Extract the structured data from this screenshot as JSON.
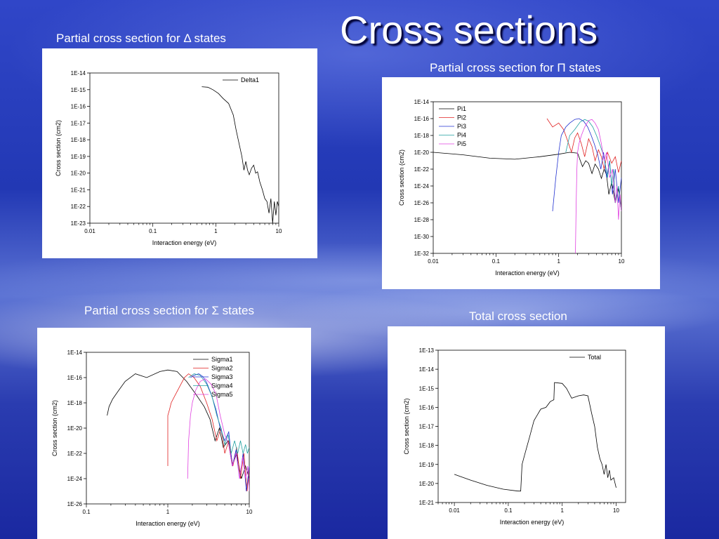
{
  "title": "Cross sections",
  "captions": {
    "delta": "Partial cross section for Δ states",
    "pi": "Partial cross section for Π states",
    "sigma": "Partial cross section for Σ states",
    "total": "Total cross section"
  },
  "chart_data": [
    {
      "id": "delta",
      "type": "line",
      "xlabel": "Interaction energy (eV)",
      "ylabel": "Cross section (cm2)",
      "xscale": "log",
      "yscale": "log",
      "xlim": [
        0.01,
        10
      ],
      "ylim": [
        1e-23,
        1e-14
      ],
      "xticks": [
        0.01,
        0.1,
        1,
        10
      ],
      "xticklabels": [
        "0.01",
        "0.1",
        "1",
        "10"
      ],
      "yticks": [
        1e-23,
        1e-22,
        1e-21,
        1e-20,
        1e-19,
        1e-18,
        1e-17,
        1e-16,
        1e-15,
        1e-14
      ],
      "yticklabels": [
        "1E-23",
        "1E-22",
        "1E-21",
        "1E-20",
        "1E-19",
        "1E-18",
        "1E-17",
        "1E-16",
        "1E-15",
        "1E-14"
      ],
      "legend_position": "top-right",
      "series": [
        {
          "name": "Delta1",
          "color": "#000000",
          "x": [
            0.6,
            0.75,
            0.9,
            1.1,
            1.3,
            1.6,
            1.9,
            2.1,
            2.3,
            2.6,
            2.8,
            3.0,
            3.2,
            3.4,
            3.7,
            4.0,
            4.3,
            4.6,
            5.0,
            5.5,
            6.0,
            6.5,
            7.0,
            7.5,
            8.0,
            8.5,
            9.0,
            9.5,
            10
          ],
          "y": [
            1.5e-15,
            1.4e-15,
            1e-15,
            6e-16,
            3e-16,
            1.5e-16,
            3e-17,
            4e-18,
            8e-19,
            1e-19,
            1.5e-20,
            5e-20,
            1.5e-20,
            8e-21,
            2e-20,
            3e-20,
            1e-20,
            1.2e-20,
            3e-21,
            1e-21,
            3e-22,
            2e-22,
            4e-23,
            3e-22,
            1e-23,
            2e-22,
            3e-23,
            2e-22,
            1e-22
          ]
        }
      ]
    },
    {
      "id": "pi",
      "type": "line",
      "xlabel": "Interaction energy (eV)",
      "ylabel": "Cross section (cm2)",
      "xscale": "log",
      "yscale": "log",
      "xlim": [
        0.01,
        10
      ],
      "ylim": [
        1e-32,
        1e-14
      ],
      "xticks": [
        0.01,
        0.1,
        1,
        10
      ],
      "xticklabels": [
        "0.01",
        "0.1",
        "1",
        "10"
      ],
      "yticks": [
        1e-32,
        1e-30,
        1e-28,
        1e-26,
        1e-24,
        1e-22,
        1e-20,
        1e-18,
        1e-16,
        1e-14
      ],
      "yticklabels": [
        "1E-32",
        "1E-30",
        "1E-28",
        "1E-26",
        "1E-24",
        "1E-22",
        "1E-20",
        "1E-18",
        "1E-16",
        "1E-14"
      ],
      "legend_position": "top-left",
      "series": [
        {
          "name": "Pi1",
          "color": "#000000",
          "x": [
            0.01,
            0.03,
            0.08,
            0.2,
            0.5,
            1.0,
            1.5,
            2.0,
            2.4,
            2.7,
            3.0,
            3.4,
            3.8,
            4.3,
            4.8,
            5.3,
            5.8,
            6.3,
            7.0,
            8.0,
            9.0,
            10
          ],
          "y": [
            1e-20,
            5e-21,
            2e-21,
            1.5e-21,
            3e-21,
            6e-21,
            1e-20,
            8e-21,
            2e-22,
            1e-21,
            5e-22,
            3e-23,
            4e-22,
            1e-22,
            8e-24,
            1e-22,
            2e-23,
            1e-25,
            3e-24,
            1e-26,
            5e-25,
            1e-27
          ]
        },
        {
          "name": "Pi2",
          "color": "#e02020",
          "x": [
            0.65,
            0.8,
            1.0,
            1.2,
            1.4,
            1.6,
            1.8,
            2.0,
            2.3,
            2.6,
            3.0,
            3.4,
            3.8,
            4.3,
            4.8,
            5.3,
            6.0,
            7.0,
            8.0,
            9.0,
            10
          ],
          "y": [
            1e-16,
            1e-17,
            3e-17,
            5e-18,
            2e-19,
            1e-20,
            5e-19,
            2e-18,
            1e-19,
            3e-21,
            4e-19,
            5e-20,
            1e-21,
            2e-20,
            3e-21,
            1e-22,
            1e-20,
            5e-22,
            3e-21,
            4e-23,
            1e-21
          ]
        },
        {
          "name": "Pi3",
          "color": "#2030d0",
          "x": [
            0.8,
            0.9,
            1.0,
            1.1,
            1.3,
            1.5,
            1.8,
            2.1,
            2.5,
            2.9,
            3.3,
            3.7,
            4.2,
            4.7,
            5.2,
            5.8,
            6.5,
            7.2,
            8.0,
            9.0,
            10
          ],
          "y": [
            1e-27,
            1e-23,
            1e-20,
            1e-18,
            1e-17,
            3e-17,
            8e-17,
            1e-16,
            5e-17,
            1e-17,
            1e-18,
            1e-19,
            5e-21,
            1e-22,
            1e-20,
            1e-23,
            1e-21,
            1e-25,
            1e-22,
            1e-26,
            1e-23
          ]
        },
        {
          "name": "Pi4",
          "color": "#20a0a0",
          "x": [
            1.3,
            1.5,
            1.8,
            2.2,
            2.6,
            3.0,
            3.5,
            4.0,
            4.5,
            5.0,
            5.5,
            6.0,
            6.5,
            7.0,
            7.5,
            8.0,
            9.0,
            10
          ],
          "y": [
            1e-20,
            1e-18,
            5e-18,
            4e-17,
            8e-17,
            5e-17,
            1e-17,
            1e-18,
            1e-19,
            1e-20,
            5e-22,
            1e-23,
            1e-21,
            1e-24,
            1e-22,
            1e-26,
            1e-24,
            1e-27
          ]
        },
        {
          "name": "Pi5",
          "color": "#e040e0",
          "x": [
            1.85,
            1.9,
            1.95,
            2.0,
            2.1,
            2.3,
            2.6,
            3.0,
            3.4,
            3.8,
            4.3,
            4.8,
            5.3,
            5.8,
            6.5,
            7.2,
            8.0,
            8.5,
            9.0,
            9.5,
            10
          ],
          "y": [
            1e-32,
            1e-26,
            1e-22,
            1e-20,
            1e-19,
            1e-18,
            1e-17,
            6e-17,
            8e-17,
            3e-17,
            5e-18,
            1e-19,
            1e-21,
            1e-20,
            1e-23,
            1e-22,
            1e-26,
            1e-24,
            1e-28,
            1e-25,
            1e-27
          ]
        }
      ]
    },
    {
      "id": "sigma",
      "type": "line",
      "xlabel": "Interaction energy (eV)",
      "ylabel": "Cross section (cm2)",
      "xscale": "log",
      "yscale": "log",
      "xlim": [
        0.1,
        10
      ],
      "ylim": [
        1e-26,
        1e-14
      ],
      "xticks": [
        0.1,
        1,
        10
      ],
      "xticklabels": [
        "0.1",
        "1",
        "10"
      ],
      "yticks": [
        1e-26,
        1e-24,
        1e-22,
        1e-20,
        1e-18,
        1e-16,
        1e-14
      ],
      "yticklabels": [
        "1E-26",
        "1E-24",
        "1E-22",
        "1E-20",
        "1E-18",
        "1E-16",
        "1E-14"
      ],
      "legend_position": "top-right",
      "series": [
        {
          "name": "Sigma1",
          "color": "#000000",
          "x": [
            0.18,
            0.19,
            0.21,
            0.25,
            0.3,
            0.4,
            0.55,
            0.8,
            1.0,
            1.3,
            1.7,
            2.2,
            2.8,
            3.3,
            3.8,
            4.3,
            4.8,
            5.5,
            6.2,
            7.0,
            8.0,
            9.0,
            10
          ],
          "y": [
            1e-19,
            5e-19,
            2e-18,
            1e-17,
            5e-17,
            2e-16,
            1e-16,
            3e-16,
            4e-16,
            3e-16,
            5e-17,
            5e-18,
            5e-19,
            5e-20,
            1e-21,
            1e-20,
            3e-22,
            1e-21,
            1e-23,
            1e-22,
            1e-24,
            1e-23,
            1e-24
          ]
        },
        {
          "name": "Sigma2",
          "color": "#e02020",
          "x": [
            1.0,
            1.0,
            1.05,
            1.1,
            1.2,
            1.4,
            1.6,
            1.8,
            2.1,
            2.5,
            3.0,
            3.5,
            4.0,
            4.5,
            5.0,
            5.6,
            6.3,
            7.0,
            7.8,
            8.6,
            9.4,
            10
          ],
          "y": [
            1e-23,
            1e-19,
            3e-19,
            1e-18,
            3e-18,
            2e-17,
            1e-16,
            2e-16,
            1e-16,
            2e-17,
            1e-18,
            5e-20,
            1e-21,
            1e-20,
            1e-22,
            1e-21,
            1e-23,
            3e-22,
            1e-24,
            1e-22,
            1e-25,
            1e-23
          ]
        },
        {
          "name": "Sigma3",
          "color": "#2030d0",
          "x": [
            1.9,
            2.1,
            2.4,
            2.7,
            3.0,
            3.4,
            3.9,
            4.4,
            5.0,
            5.6,
            6.2,
            6.9,
            7.6,
            8.4,
            9.2,
            10
          ],
          "y": [
            1e-16,
            1.5e-16,
            2e-16,
            1.2e-16,
            4e-17,
            5e-18,
            3e-19,
            1e-20,
            1e-21,
            5e-21,
            1e-23,
            2e-22,
            1e-24,
            1e-22,
            1e-25,
            1e-23
          ]
        },
        {
          "name": "Sigma4",
          "color": "#20a0a0",
          "x": [
            1.8,
            2.1,
            2.5,
            3.0,
            3.5,
            4.0,
            4.5,
            5.0,
            5.5,
            6.0,
            6.6,
            7.2,
            7.8,
            8.4,
            9.0,
            9.5,
            10
          ],
          "y": [
            1e-16,
            2e-16,
            1.5e-16,
            3e-17,
            3e-18,
            1e-19,
            1e-20,
            5e-22,
            3e-21,
            1e-22,
            1e-21,
            1e-22,
            1e-21,
            1e-22,
            5e-22,
            1e-22,
            3e-22
          ]
        },
        {
          "name": "Sigma5",
          "color": "#e040e0",
          "x": [
            1.75,
            1.8,
            1.9,
            2.0,
            2.2,
            2.5,
            2.9,
            3.4,
            3.9,
            4.4,
            5.0,
            5.6,
            6.2,
            6.9,
            7.6,
            8.3,
            9.0,
            9.6,
            10
          ],
          "y": [
            1e-24,
            1e-21,
            1e-19,
            1e-18,
            1e-17,
            5e-17,
            8e-17,
            3e-17,
            5e-18,
            1e-19,
            3e-21,
            5e-22,
            1e-23,
            1e-22,
            1e-24,
            5e-23,
            1e-24,
            1e-23,
            1e-25
          ]
        }
      ]
    },
    {
      "id": "total",
      "type": "line",
      "xlabel": "Interaction energy (eV)",
      "ylabel": "Cross section (cm2)",
      "xscale": "log",
      "yscale": "log",
      "xlim": [
        0.005,
        15
      ],
      "ylim": [
        1e-21,
        1e-13
      ],
      "xticks": [
        0.01,
        0.1,
        1,
        10
      ],
      "xticklabels": [
        "0.01",
        "0.1",
        "1",
        "10"
      ],
      "yticks": [
        1e-21,
        1e-20,
        1e-19,
        1e-18,
        1e-17,
        1e-16,
        1e-15,
        1e-14,
        1e-13
      ],
      "yticklabels": [
        "1E-21",
        "1E-20",
        "1E-19",
        "1E-18",
        "1E-17",
        "1E-16",
        "1E-15",
        "1E-14",
        "1E-13"
      ],
      "legend_position": "top-right",
      "series": [
        {
          "name": "Total",
          "color": "#000000",
          "x": [
            0.01,
            0.02,
            0.04,
            0.08,
            0.15,
            0.17,
            0.18,
            0.2,
            0.25,
            0.3,
            0.4,
            0.5,
            0.6,
            0.7,
            0.72,
            1.0,
            1.2,
            1.5,
            2.0,
            2.5,
            3.0,
            3.5,
            4.0,
            4.5,
            5.0,
            5.5,
            6.0,
            6.5,
            7.0,
            7.5,
            8.0,
            9.0,
            10
          ],
          "y": [
            3e-20,
            1.5e-20,
            8e-21,
            5e-21,
            4e-21,
            4e-21,
            1e-19,
            3e-19,
            3e-18,
            2e-17,
            8e-17,
            1e-16,
            2e-16,
            2.5e-16,
            2e-15,
            1.8e-15,
            1e-15,
            3e-16,
            4e-16,
            4.5e-16,
            4e-16,
            5e-17,
            1e-17,
            8e-19,
            2e-19,
            1e-19,
            3e-20,
            1e-19,
            2e-20,
            5e-20,
            1.5e-20,
            2e-20,
            6e-21
          ]
        }
      ]
    }
  ]
}
